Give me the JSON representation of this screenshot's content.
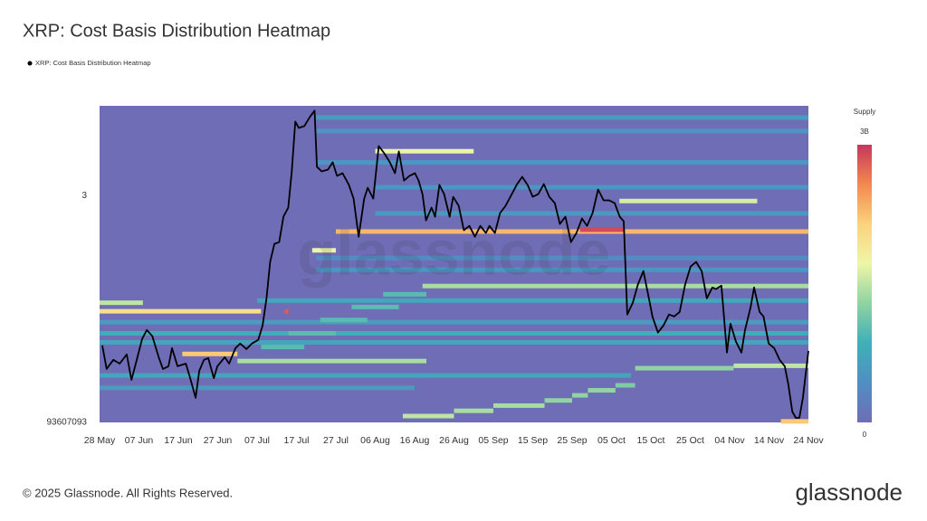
{
  "chart_data": {
    "type": "heatmap",
    "title": "XRP: Cost Basis Distribution Heatmap",
    "watermark": "glassnode",
    "footer": "© 2025 Glassnode. All Rights Reserved.",
    "brand": "glassnode",
    "log_y": true,
    "xlim": [
      0,
      180
    ],
    "xticks": [
      {
        "value": 0,
        "label": "28 May"
      },
      {
        "value": 10,
        "label": "07 Jun"
      },
      {
        "value": 20,
        "label": "17 Jun"
      },
      {
        "value": 30,
        "label": "27 Jun"
      },
      {
        "value": 40,
        "label": "07 Jul"
      },
      {
        "value": 50,
        "label": "17 Jul"
      },
      {
        "value": 60,
        "label": "27 Jul"
      },
      {
        "value": 70,
        "label": "06 Aug"
      },
      {
        "value": 80,
        "label": "16 Aug"
      },
      {
        "value": 90,
        "label": "26 Aug"
      },
      {
        "value": 100,
        "label": "05 Sep"
      },
      {
        "value": 110,
        "label": "15 Sep"
      },
      {
        "value": 120,
        "label": "25 Sep"
      },
      {
        "value": 130,
        "label": "05 Oct"
      },
      {
        "value": 140,
        "label": "15 Oct"
      },
      {
        "value": 150,
        "label": "25 Oct"
      },
      {
        "value": 160,
        "label": "04 Nov"
      },
      {
        "value": 170,
        "label": "14 Nov"
      },
      {
        "value": 180,
        "label": "24 Nov"
      }
    ],
    "ylim": [
      1.93607093,
      3.57
    ],
    "yticks": [
      3,
      {
        "value": 1.93607093,
        "label": "93607093"
      }
    ],
    "colorbar": {
      "title": "Supply",
      "lim": [
        0,
        3000000000
      ],
      "ticks": [
        0,
        {
          "value": 3000000000,
          "label": "3B"
        }
      ],
      "colormap": [
        "#6f6db6",
        "#4f8fc4",
        "#40b0b8",
        "#8ed3a2",
        "#eef6a6",
        "#fcd27e",
        "#f3894f",
        "#c5375c"
      ]
    },
    "heatmap": [
      {
        "price": 2.3,
        "x": [
          0,
          180
        ],
        "supply": 800000000
      },
      {
        "price": 2.26,
        "x": [
          0,
          180
        ],
        "supply": 700000000
      },
      {
        "price": 2.12,
        "x": [
          0,
          135
        ],
        "supply": 700000000
      },
      {
        "price": 2.07,
        "x": [
          0,
          80
        ],
        "supply": 600000000
      },
      {
        "price": 2.35,
        "x": [
          0,
          180
        ],
        "supply": 600000000
      },
      {
        "price": 2.45,
        "x": [
          40,
          180
        ],
        "supply": 700000000
      },
      {
        "price": 2.6,
        "x": [
          55,
          180
        ],
        "supply": 500000000
      },
      {
        "price": 2.66,
        "x": [
          55,
          180
        ],
        "supply": 400000000
      },
      {
        "price": 3.49,
        "x": [
          55,
          180
        ],
        "supply": 600000000
      },
      {
        "price": 3.4,
        "x": [
          55,
          180
        ],
        "supply": 500000000
      },
      {
        "price": 3.2,
        "x": [
          55,
          180
        ],
        "supply": 500000000
      },
      {
        "price": 3.05,
        "x": [
          70,
          180
        ],
        "supply": 500000000
      },
      {
        "price": 2.9,
        "x": [
          70,
          180
        ],
        "supply": 550000000
      },
      {
        "price": 2.24,
        "x": [
          41,
          52
        ],
        "supply": 1000000000
      },
      {
        "price": 2.3,
        "x": [
          48,
          60
        ],
        "supply": 1000000000
      },
      {
        "price": 2.36,
        "x": [
          56,
          68
        ],
        "supply": 1000000000
      },
      {
        "price": 2.42,
        "x": [
          64,
          76
        ],
        "supply": 1000000000
      },
      {
        "price": 2.48,
        "x": [
          72,
          83
        ],
        "supply": 1000000000
      },
      {
        "price": 2.8,
        "x": [
          60,
          180
        ],
        "supply": 2300000000
      },
      {
        "price": 2.81,
        "x": [
          122,
          133
        ],
        "supply": 2900000000
      },
      {
        "price": 3.27,
        "x": [
          70,
          95
        ],
        "supply": 1700000000
      },
      {
        "price": 2.97,
        "x": [
          132,
          167
        ],
        "supply": 1600000000
      },
      {
        "price": 2.7,
        "x": [
          54,
          60
        ],
        "supply": 1700000000
      },
      {
        "price": 2.52,
        "x": [
          82,
          180
        ],
        "supply": 1400000000
      },
      {
        "price": 2.4,
        "x": [
          0,
          41
        ],
        "supply": 2000000000
      },
      {
        "price": 2.44,
        "x": [
          0,
          11
        ],
        "supply": 1500000000
      },
      {
        "price": 2.21,
        "x": [
          21,
          35
        ],
        "supply": 2200000000
      },
      {
        "price": 2.18,
        "x": [
          35,
          83
        ],
        "supply": 1400000000
      },
      {
        "price": 2.16,
        "x": [
          161,
          180
        ],
        "supply": 1500000000
      },
      {
        "price": 2.15,
        "x": [
          136,
          161
        ],
        "supply": 1300000000
      },
      {
        "price": 1.96,
        "x": [
          77,
          90
        ],
        "supply": 1500000000
      },
      {
        "price": 1.98,
        "x": [
          90,
          100
        ],
        "supply": 1400000000
      },
      {
        "price": 2.0,
        "x": [
          100,
          113
        ],
        "supply": 1400000000
      },
      {
        "price": 2.02,
        "x": [
          113,
          120
        ],
        "supply": 1300000000
      },
      {
        "price": 2.04,
        "x": [
          120,
          124
        ],
        "supply": 1300000000
      },
      {
        "price": 2.06,
        "x": [
          124,
          131
        ],
        "supply": 1300000000
      },
      {
        "price": 2.08,
        "x": [
          131,
          136
        ],
        "supply": 1200000000
      },
      {
        "price": 1.94,
        "x": [
          173,
          180
        ],
        "supply": 2200000000
      },
      {
        "price": 2.4,
        "x": [
          47,
          48
        ],
        "supply": 2800000000
      }
    ],
    "series": [
      {
        "name": "XRP: Cost Basis Distribution Heatmap",
        "color": "#000000",
        "x": [
          0.7,
          1.8,
          3.5,
          5.1,
          6.9,
          8.1,
          9.2,
          10.8,
          12.0,
          13.4,
          15.0,
          16.1,
          17.5,
          18.4,
          19.8,
          21.9,
          23.0,
          24.4,
          25.3,
          26.5,
          27.6,
          29.0,
          29.9,
          31.8,
          32.9,
          34.5,
          35.7,
          37.3,
          38.7,
          40.3,
          41.4,
          42.4,
          43.3,
          44.4,
          45.6,
          46.7,
          47.9,
          48.8,
          49.7,
          50.6,
          52.0,
          53.4,
          54.6,
          55.2,
          56.4,
          58.0,
          59.2,
          60.3,
          61.7,
          63.3,
          64.5,
          65.8,
          67.2,
          68.1,
          69.5,
          70.9,
          72.3,
          73.7,
          75.0,
          76.0,
          77.3,
          78.7,
          80.1,
          81.0,
          82.0,
          82.9,
          84.3,
          85.2,
          86.3,
          87.5,
          88.9,
          89.8,
          91.2,
          92.5,
          93.9,
          95.3,
          96.7,
          98.1,
          99.0,
          100.4,
          101.7,
          103.1,
          104.7,
          105.9,
          107.3,
          108.7,
          110.0,
          111.4,
          112.8,
          114.2,
          115.6,
          116.9,
          118.3,
          119.7,
          121.1,
          122.5,
          123.8,
          125.2,
          126.6,
          128.0,
          129.4,
          130.8,
          132.1,
          133.1,
          134.0,
          135.4,
          136.7,
          138.1,
          139.5,
          140.4,
          141.8,
          143.2,
          144.6,
          145.9,
          147.3,
          148.7,
          150.1,
          151.5,
          152.9,
          154.2,
          155.6,
          156.5,
          157.9,
          159.3,
          160.2,
          161.6,
          163.0,
          163.9,
          165.3,
          166.2,
          167.6,
          168.6,
          169.9,
          171.3,
          172.7,
          174.0,
          174.9,
          175.9,
          176.8,
          177.7,
          178.6,
          180.0
        ],
        "values": [
          2.247,
          2.147,
          2.185,
          2.169,
          2.208,
          2.102,
          2.169,
          2.275,
          2.315,
          2.287,
          2.196,
          2.147,
          2.158,
          2.235,
          2.158,
          2.169,
          2.109,
          2.03,
          2.139,
          2.185,
          2.192,
          2.109,
          2.158,
          2.196,
          2.169,
          2.235,
          2.255,
          2.231,
          2.255,
          2.271,
          2.335,
          2.461,
          2.64,
          2.734,
          2.743,
          2.881,
          2.932,
          3.145,
          3.463,
          3.421,
          3.433,
          3.494,
          3.537,
          3.173,
          3.145,
          3.156,
          3.201,
          3.118,
          3.134,
          3.064,
          2.984,
          2.772,
          2.984,
          3.047,
          2.984,
          3.303,
          3.257,
          3.201,
          3.134,
          3.269,
          3.09,
          3.118,
          3.134,
          3.09,
          3.01,
          2.861,
          2.932,
          2.881,
          3.064,
          3.01,
          2.881,
          2.994,
          2.943,
          2.807,
          2.831,
          2.772,
          2.831,
          2.792,
          2.831,
          2.792,
          2.902,
          2.943,
          3.01,
          3.064,
          3.112,
          3.064,
          2.994,
          3.01,
          3.069,
          2.994,
          2.958,
          2.841,
          2.881,
          2.743,
          2.792,
          2.871,
          2.831,
          2.902,
          3.037,
          2.974,
          2.974,
          2.958,
          2.881,
          2.856,
          2.385,
          2.44,
          2.527,
          2.594,
          2.461,
          2.376,
          2.303,
          2.335,
          2.385,
          2.376,
          2.397,
          2.527,
          2.617,
          2.64,
          2.594,
          2.461,
          2.513,
          2.505,
          2.522,
          2.216,
          2.343,
          2.263,
          2.216,
          2.315,
          2.418,
          2.513,
          2.397,
          2.376,
          2.255,
          2.235,
          2.185,
          2.158,
          2.084,
          1.977,
          1.953,
          1.953,
          2.03,
          2.223
        ]
      }
    ]
  }
}
